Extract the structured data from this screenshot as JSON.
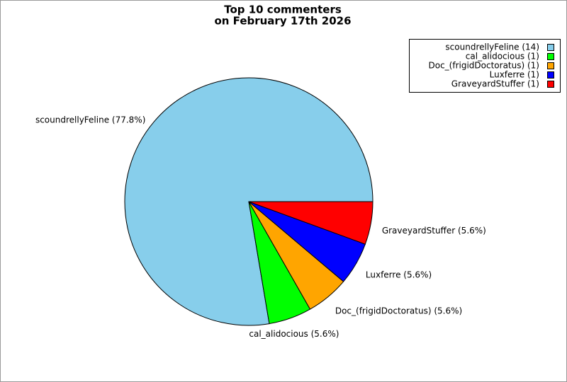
{
  "chart_data": {
    "type": "pie",
    "title": "Top 10 commenters",
    "subtitle": "on February 17th 2026",
    "values": [
      77.8,
      5.6,
      5.6,
      5.6,
      5.6
    ],
    "value_labels": [
      "scoundrellyFeline (77.8%)",
      "cal_alidocious (5.6%)",
      "Doc_(frigidDoctoratus) (5.6%)",
      "Luxferre (5.6%)",
      "GraveyardStuffer (5.6%)"
    ],
    "counts": [
      14,
      1,
      1,
      1,
      1
    ],
    "count_labels": [
      "scoundrellyFeline (14)",
      "cal_alidocious (1)",
      "Doc_(frigidDoctoratus) (1)",
      "Luxferre (1)",
      "GraveyardStuffer (1)"
    ],
    "colors": [
      "#87ceeb",
      "#00ff00",
      "#ffa500",
      "#0000ff",
      "#ff0000"
    ],
    "legend": "upper right"
  }
}
